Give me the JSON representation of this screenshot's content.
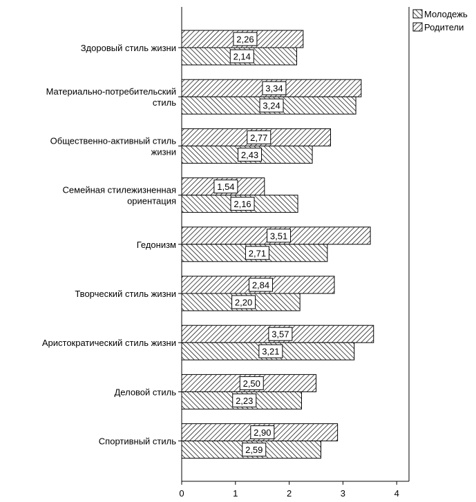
{
  "chart_data": {
    "type": "bar",
    "orientation": "horizontal",
    "categories": [
      [
        "Здоровый стиль жизни"
      ],
      [
        "Материально-потребительский",
        "стиль"
      ],
      [
        "Общественно-активный стиль",
        "жизни"
      ],
      [
        "Семейная стилежизненная",
        "ориентация"
      ],
      [
        "Гедонизм"
      ],
      [
        "Творческий стиль жизни"
      ],
      [
        "Аристократический стиль жизни"
      ],
      [
        "Деловой стиль"
      ],
      [
        "Спортивный стиль"
      ]
    ],
    "series": [
      {
        "name": "Родители",
        "pattern": "forward-diagonal",
        "values": [
          2.26,
          3.34,
          2.77,
          1.54,
          3.51,
          2.84,
          3.57,
          2.5,
          2.9
        ],
        "labels": [
          "2,26",
          "3,34",
          "2,77",
          "1,54",
          "3,51",
          "2,84",
          "3,57",
          "2,50",
          "2,90"
        ]
      },
      {
        "name": "Молодежь",
        "pattern": "back-diagonal",
        "values": [
          2.14,
          3.24,
          2.43,
          2.16,
          2.71,
          2.2,
          3.21,
          2.23,
          2.59
        ],
        "labels": [
          "2,14",
          "3,24",
          "2,43",
          "2,16",
          "2,71",
          "2,20",
          "3,21",
          "2,23",
          "2,59"
        ]
      }
    ],
    "x_ticks": [
      "0",
      "1",
      "2",
      "3",
      "4"
    ],
    "xlim": [
      0,
      4.2
    ],
    "grid": false,
    "legend": {
      "placement": "top-right",
      "entries": [
        {
          "name": "Молодежь",
          "pattern": "back-diagonal"
        },
        {
          "name": "Родители",
          "pattern": "forward-diagonal"
        }
      ]
    },
    "bar_fill": "#ffffff",
    "bar_stroke": "#000000"
  }
}
